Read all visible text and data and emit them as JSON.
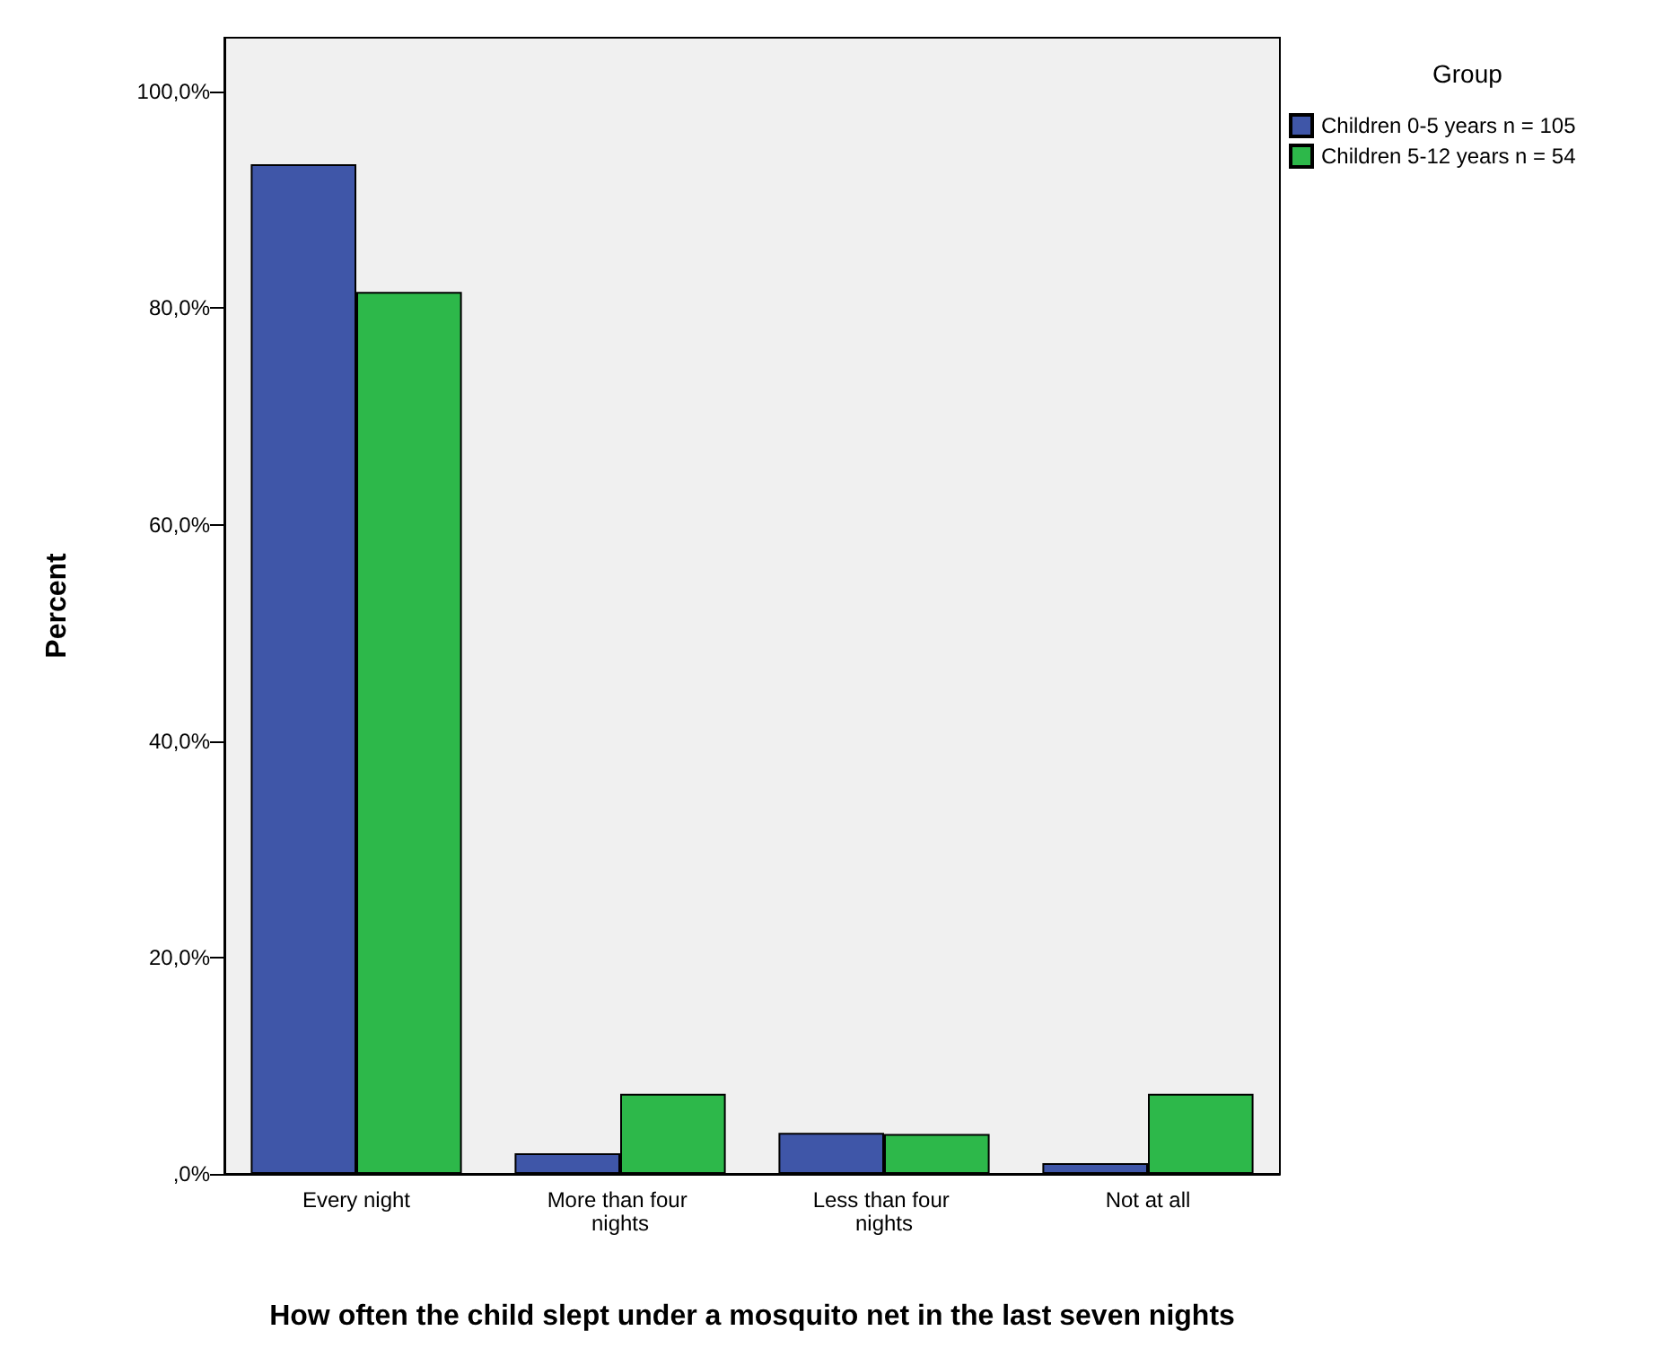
{
  "chart_data": {
    "type": "bar",
    "xlabel": "How often the child slept under a mosquito net in the last seven nights",
    "ylabel": "Percent",
    "legend_title": "Group",
    "categories": [
      "Every night",
      "More than four nights",
      "Less than four nights",
      "Not at all"
    ],
    "series": [
      {
        "name": "Children 0-5 years n = 105",
        "color": "#3f56a8",
        "values": [
          93.3,
          1.9,
          3.8,
          1.0
        ]
      },
      {
        "name": "Children 5-12 years n = 54",
        "color": "#2db84a",
        "values": [
          81.5,
          7.4,
          3.7,
          7.4
        ]
      }
    ],
    "ylim": [
      0,
      105
    ],
    "yticks": [
      {
        "value": 0,
        "label": ",0%"
      },
      {
        "value": 20,
        "label": "20,0%"
      },
      {
        "value": 40,
        "label": "40,0%"
      },
      {
        "value": 60,
        "label": "60,0%"
      },
      {
        "value": 80,
        "label": "80,0%"
      },
      {
        "value": 100,
        "label": "100,0%"
      }
    ],
    "grid": false,
    "legend": "top right"
  }
}
